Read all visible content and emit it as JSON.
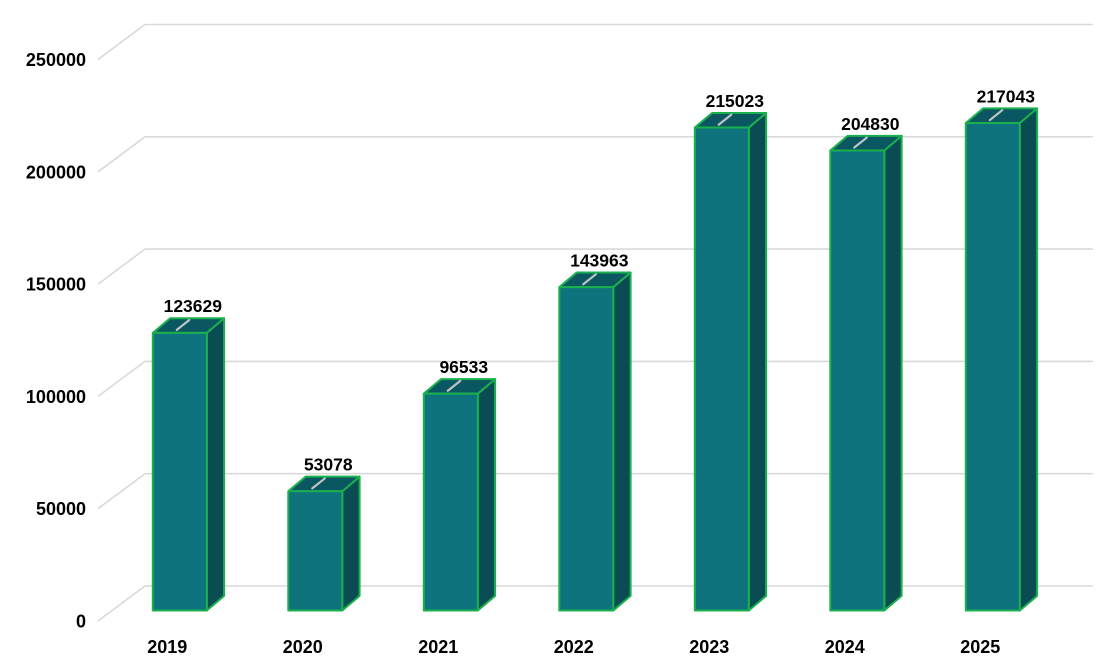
{
  "chart_data": {
    "type": "bar",
    "style": "3d-column",
    "title": "",
    "xlabel": "",
    "ylabel": "",
    "categories": [
      "2019",
      "2020",
      "2021",
      "2022",
      "2023",
      "2024",
      "2025"
    ],
    "values": [
      123629,
      53078,
      96533,
      143963,
      215023,
      204830,
      217043
    ],
    "data_labels": [
      "123629",
      "53078",
      "96533",
      "143963",
      "215023",
      "204830",
      "217043"
    ],
    "ylim": [
      0,
      250000
    ],
    "yticks": [
      0,
      50000,
      100000,
      150000,
      200000,
      250000
    ],
    "ytick_labels": [
      "0",
      "50000",
      "100000",
      "150000",
      "200000",
      "250000"
    ],
    "grid": true,
    "legend": false,
    "colors": {
      "background": "#ffffff",
      "bar_front": "#0e737d",
      "bar_side": "#094c54",
      "bar_top": "#0b5761",
      "bar_outline": "#1bb04e",
      "top_highlight": "#bdc3c6",
      "gridline": "#d9d9d9",
      "label_text": "#000000"
    }
  }
}
